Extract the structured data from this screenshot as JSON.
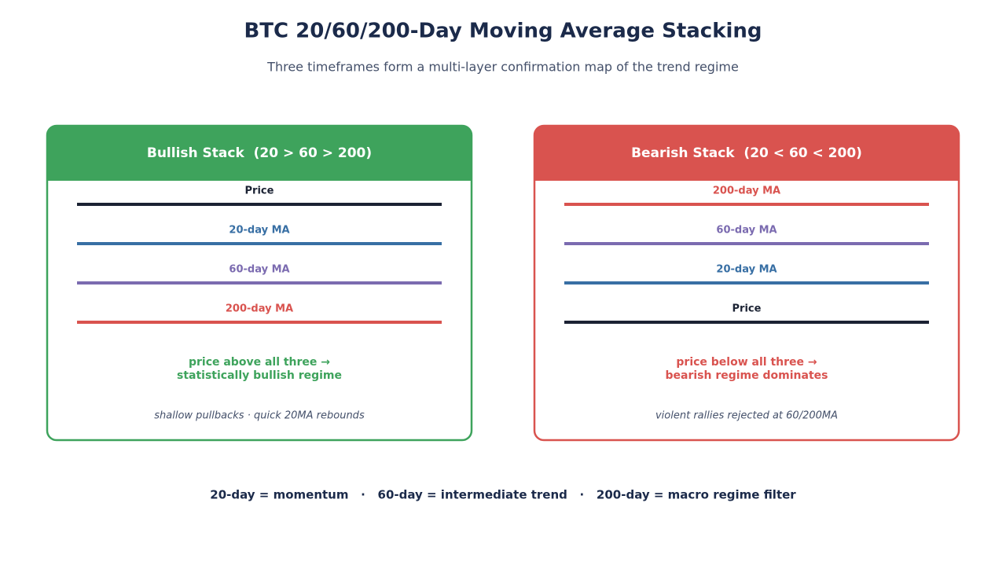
{
  "header": {
    "title": "BTC 20/60/200-Day Moving Average Stacking",
    "subtitle": "Three timeframes form a multi-layer confirmation map of the trend regime"
  },
  "panels": [
    {
      "title": "Bullish Stack  (20 > 60 > 200)",
      "lines": [
        "Price",
        "20-day MA",
        "60-day MA",
        "200-day MA"
      ],
      "conclusion": [
        "price above all three →",
        "statistically bullish regime"
      ],
      "note": "shallow pullbacks · quick 20MA rebounds"
    },
    {
      "title": "Bearish Stack  (20 < 60 < 200)",
      "lines": [
        "200-day MA",
        "60-day MA",
        "20-day MA",
        "Price"
      ],
      "conclusion": [
        "price below all three →",
        "bearish regime dominates"
      ],
      "note": "violent rallies rejected at 60/200MA"
    }
  ],
  "footer": "20-day = momentum   ·   60-day = intermediate trend   ·   200-day = macro regime filter"
}
